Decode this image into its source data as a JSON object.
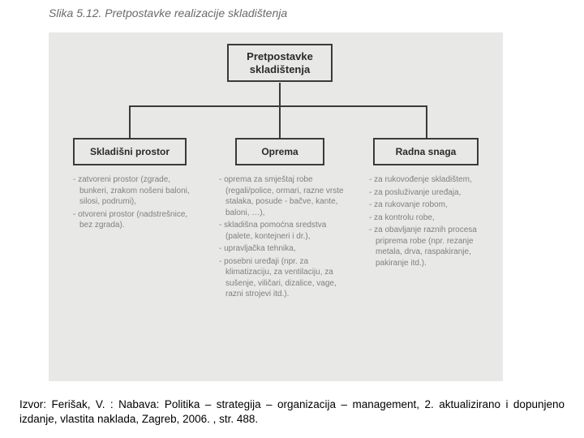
{
  "figure_title": "Slika 5.12. Pretpostavke realizacije skladištenja",
  "colors": {
    "page_bg": "#ffffff",
    "diagram_bg": "#e8e8e6",
    "box_border": "#3a3a3a",
    "box_text": "#2a2a2a",
    "bullet_text": "#808080",
    "title_text": "#6a6a6a",
    "source_text": "#000000"
  },
  "typography": {
    "title_fontsize": 14,
    "box_fontsize_root": 13,
    "box_fontsize_child": 12,
    "bullet_fontsize": 10,
    "source_fontsize": 13.5
  },
  "diagram": {
    "type": "tree",
    "root": {
      "label": "Pretpostavke skladištenja"
    },
    "children": [
      {
        "label": "Skladišni prostor",
        "bullets": [
          "- zatvoreni prostor (zgrade, bunkeri, zrakom nošeni baloni, silosi, podrumi),",
          "- otvoreni prostor (nadstrešnice, bez zgrada)."
        ]
      },
      {
        "label": "Oprema",
        "bullets": [
          "- oprema za smještaj robe (regali/police, ormari, razne vrste stalaka, posude - bačve, kante, baloni, …),",
          "- skladišna pomoćna sredstva (palete, kontejneri i dr.),",
          "- upravljačka tehnika,",
          "- posebni uređaji (npr. za klimatizaciju, za ventilaciju, za sušenje, viličari, dizalice, vage, razni strojevi itd.)."
        ]
      },
      {
        "label": "Radna snaga",
        "bullets": [
          "- za rukovođenje skladištem,",
          "- za posluživanje uređaja,",
          "- za rukovanje robom,",
          "- za kontrolu robe,",
          "- za obavljanje raznih procesa priprema robe (npr. rezanje metala, drva, raspakiranje, pakiranje itd.)."
        ]
      }
    ]
  },
  "source": "Izvor: Ferišak, V. : Nabava: Politika – strategija – organizacija – management, 2. aktualizirano i dopunjeno izdanje, vlastita naklada, Zagreb, 2006. , str. 488."
}
